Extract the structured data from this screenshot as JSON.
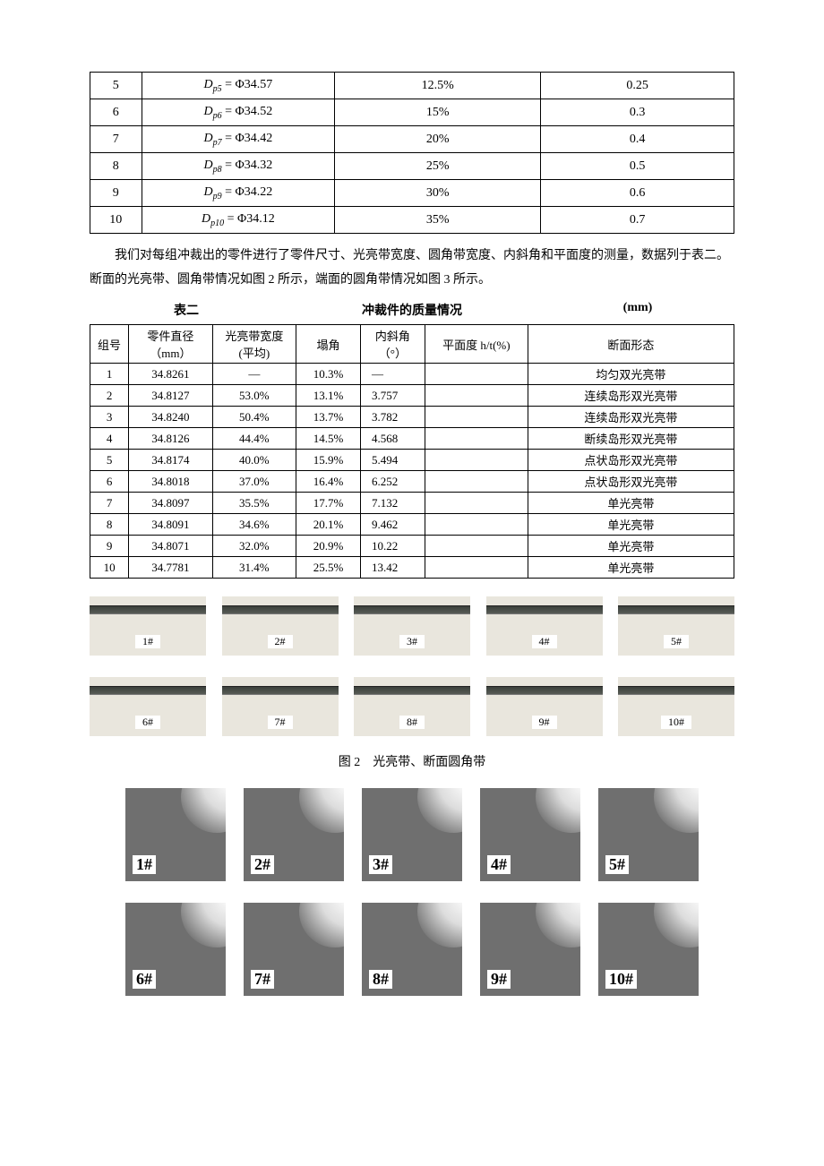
{
  "table1": {
    "rows": [
      {
        "n": "5",
        "dp_sub": "p5",
        "dp_val": "Φ34.57",
        "pct": "12.5%",
        "gap": "0.25"
      },
      {
        "n": "6",
        "dp_sub": "p6",
        "dp_val": "Φ34.52",
        "pct": "15%",
        "gap": "0.3"
      },
      {
        "n": "7",
        "dp_sub": "p7",
        "dp_val": "Φ34.42",
        "pct": "20%",
        "gap": "0.4"
      },
      {
        "n": "8",
        "dp_sub": "p8",
        "dp_val": "Φ34.32",
        "pct": "25%",
        "gap": "0.5"
      },
      {
        "n": "9",
        "dp_sub": "p9",
        "dp_val": "Φ34.22",
        "pct": "30%",
        "gap": "0.6"
      },
      {
        "n": "10",
        "dp_sub": "p10",
        "dp_val": "Φ34.12",
        "pct": "35%",
        "gap": "0.7"
      }
    ]
  },
  "paragraph": "我们对每组冲裁出的零件进行了零件尺寸、光亮带宽度、圆角带宽度、内斜角和平面度的测量，数据列于表二。断面的光亮带、圆角带情况如图 2 所示，端面的圆角带情况如图 3 所示。",
  "table2_title": {
    "left": "表二",
    "center": "冲裁件的质量情况",
    "right": "(mm)"
  },
  "table2": {
    "headers": {
      "c0": "组号",
      "c1a": "零件直径",
      "c1b": "（mm）",
      "c2a": "光亮带宽度",
      "c2b": "(平均)",
      "c3": "塌角",
      "c4a": "内斜角",
      "c4b": "（°）",
      "c5": "平面度 h/t(%)",
      "c6": "断面形态"
    },
    "rows": [
      {
        "n": "1",
        "dia": "34.8261",
        "band": "—",
        "col": "10.3%",
        "ang": "—",
        "flat": "",
        "morph": "均匀双光亮带"
      },
      {
        "n": "2",
        "dia": "34.8127",
        "band": "53.0%",
        "col": "13.1%",
        "ang": "3.757",
        "flat": "",
        "morph": "连续岛形双光亮带"
      },
      {
        "n": "3",
        "dia": "34.8240",
        "band": "50.4%",
        "col": "13.7%",
        "ang": "3.782",
        "flat": "",
        "morph": "连续岛形双光亮带"
      },
      {
        "n": "4",
        "dia": "34.8126",
        "band": "44.4%",
        "col": "14.5%",
        "ang": "4.568",
        "flat": "",
        "morph": "断续岛形双光亮带"
      },
      {
        "n": "5",
        "dia": "34.8174",
        "band": "40.0%",
        "col": "15.9%",
        "ang": "5.494",
        "flat": "",
        "morph": "点状岛形双光亮带"
      },
      {
        "n": "6",
        "dia": "34.8018",
        "band": "37.0%",
        "col": "16.4%",
        "ang": "6.252",
        "flat": "",
        "morph": "点状岛形双光亮带"
      },
      {
        "n": "7",
        "dia": "34.8097",
        "band": "35.5%",
        "col": "17.7%",
        "ang": "7.132",
        "flat": "",
        "morph": "单光亮带"
      },
      {
        "n": "8",
        "dia": "34.8091",
        "band": "34.6%",
        "col": "20.1%",
        "ang": "9.462",
        "flat": "",
        "morph": "单光亮带"
      },
      {
        "n": "9",
        "dia": "34.8071",
        "band": "32.0%",
        "col": "20.9%",
        "ang": "10.22",
        "flat": "",
        "morph": "单光亮带"
      },
      {
        "n": "10",
        "dia": "34.7781",
        "band": "31.4%",
        "col": "25.5%",
        "ang": "13.42",
        "flat": "",
        "morph": "单光亮带"
      }
    ]
  },
  "fig2": {
    "labels_row1": [
      "1#",
      "2#",
      "3#",
      "4#",
      "5#"
    ],
    "labels_row2": [
      "6#",
      "7#",
      "8#",
      "9#",
      "10#"
    ],
    "caption": "图 2　光亮带、断面圆角带"
  },
  "fig3": {
    "labels_row1": [
      "1#",
      "2#",
      "3#",
      "4#",
      "5#"
    ],
    "labels_row2": [
      "6#",
      "7#",
      "8#",
      "9#",
      "10#"
    ]
  }
}
